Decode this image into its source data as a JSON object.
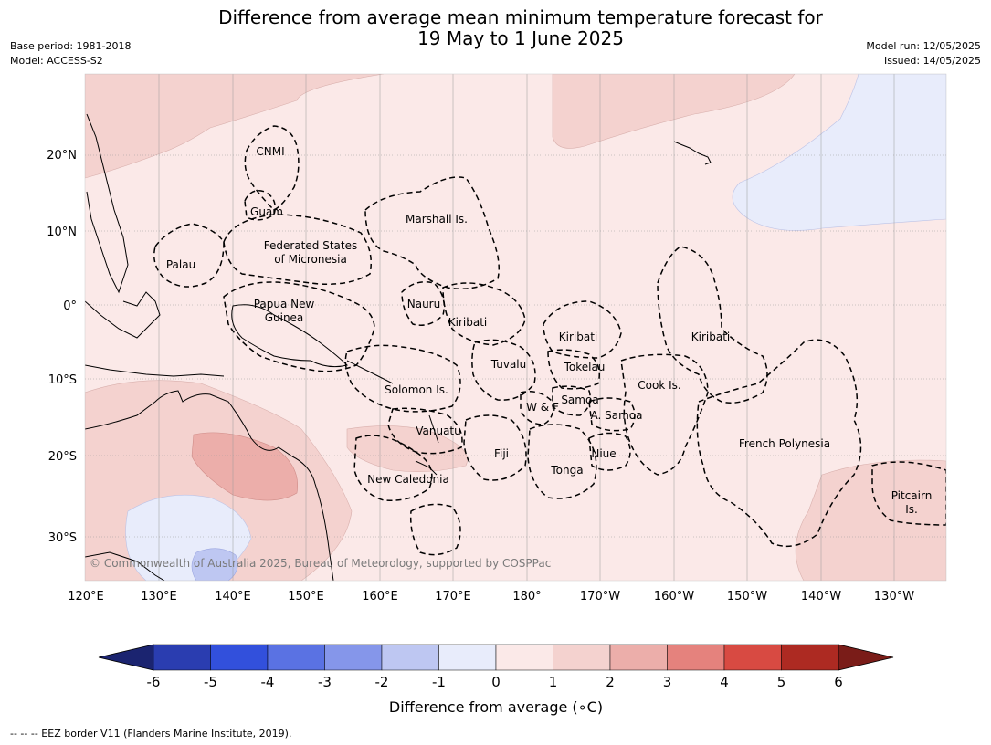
{
  "title": {
    "line1": "Difference from average mean minimum temperature forecast for",
    "line2": "19 May to 1 June 2025"
  },
  "meta": {
    "base_period": "Base period: 1981-2018",
    "model": "Model: ACCESS-S2",
    "model_run": "Model run: 12/05/2025",
    "issued": "Issued: 14/05/2025"
  },
  "lat_labels": [
    "20°N",
    "10°N",
    "0°",
    "10°S",
    "20°S",
    "30°S"
  ],
  "lon_labels": [
    "120°E",
    "130°E",
    "140°E",
    "150°E",
    "160°E",
    "170°E",
    "180°",
    "170°W",
    "160°W",
    "150°W",
    "140°W",
    "130°W"
  ],
  "regions": {
    "cnmi": "CNMI",
    "guam": "Guam",
    "marshall": "Marshall Is.",
    "fsm_1": "Federated States",
    "fsm_2": "of Micronesia",
    "palau": "Palau",
    "nauru": "Nauru",
    "png_1": "Papua New",
    "png_2": "Guinea",
    "kiribati_west": "Kiribati",
    "kiribati_central": "Kiribati",
    "kiribati_east": "Kiribati",
    "tuvalu": "Tuvalu",
    "tokelau": "Tokelau",
    "solomon": "Solomon Is.",
    "cook": "Cook Is.",
    "wf": "W & F",
    "samoa": "Samoa",
    "asamoa": "A. Samoa",
    "vanuatu": "Vanuatu",
    "fiji": "Fiji",
    "niue": "Niue",
    "french_polynesia": "French Polynesia",
    "tonga": "Tonga",
    "new_caledonia": "New Caledonia",
    "pitcairn_1": "Pitcairn",
    "pitcairn_2": "Is."
  },
  "copyright": "© Commonwealth of Australia 2025, Bureau of Meteorology, supported by COSPPac",
  "colorbar": {
    "ticks": [
      "-6",
      "-5",
      "-4",
      "-3",
      "-2",
      "-1",
      "0",
      "1",
      "2",
      "3",
      "4",
      "5",
      "6"
    ],
    "label": "Difference from average (∘C)",
    "colors": [
      "#1b2470",
      "#2a3db0",
      "#3250dc",
      "#5a72e3",
      "#8596ea",
      "#bec7f2",
      "#e8ecfb",
      "#fbe9e8",
      "#f4d2cf",
      "#ecaeaa",
      "#e5827d",
      "#d84a42",
      "#ad2a22",
      "#7a1c18"
    ]
  },
  "footer": "--  --  -- EEZ border V11 (Flanders Marine Institute, 2019)."
}
